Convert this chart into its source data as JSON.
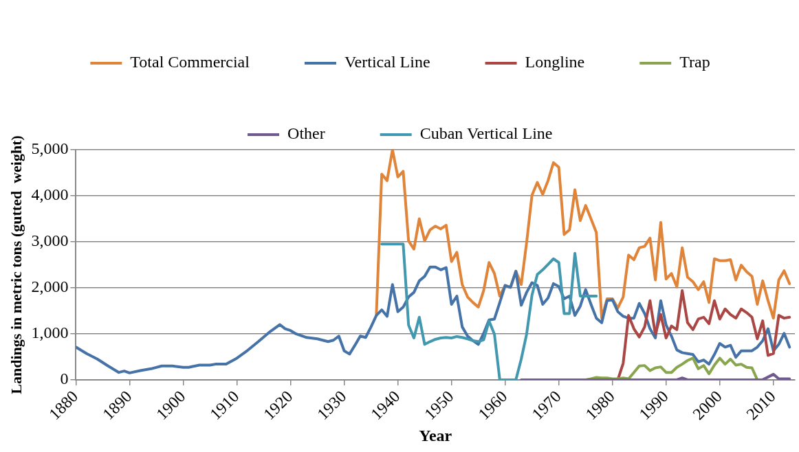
{
  "chart_data": {
    "type": "line",
    "xlabel": "Year",
    "ylabel": "Landings in metric tons (gutted  weight)",
    "xlim": [
      1880,
      2014
    ],
    "xticks": [
      1880,
      1890,
      1900,
      1910,
      1920,
      1930,
      1940,
      1950,
      1960,
      1970,
      1980,
      1990,
      2000,
      2010
    ],
    "ylim": [
      0,
      5000
    ],
    "yticks": [
      0,
      {
        "value": 1000,
        "label": "1,000"
      },
      {
        "value": 2000,
        "label": "2,000"
      },
      {
        "value": 3000,
        "label": "3,000"
      },
      {
        "value": 4000,
        "label": "4,000"
      },
      {
        "value": 5000,
        "label": "5,000"
      }
    ],
    "grid": "y",
    "legend": "top",
    "marker": "none",
    "series": [
      {
        "name": "Total Commercial",
        "color": "#e0843a",
        "x": [
          1936,
          1937,
          1938,
          1939,
          1940,
          1941,
          1942,
          1943,
          1944,
          1945,
          1946,
          1947,
          1948,
          1949,
          1950,
          1951,
          1952,
          1953,
          1954,
          1955,
          1956,
          1957,
          1958,
          1959,
          1960,
          1961,
          1962,
          1963,
          1964,
          1965,
          1966,
          1967,
          1968,
          1969,
          1970,
          1971,
          1972,
          1973,
          1974,
          1975,
          1976,
          1977,
          1978,
          1979,
          1980,
          1981,
          1982,
          1983,
          1984,
          1985,
          1986,
          1987,
          1988,
          1989,
          1990,
          1991,
          1992,
          1993,
          1994,
          1995,
          1996,
          1997,
          1998,
          1999,
          2000,
          2001,
          2002,
          2003,
          2004,
          2005,
          2006,
          2007,
          2008,
          2009,
          2010,
          2011,
          2012,
          2013
        ],
        "values": [
          1420,
          4470,
          4330,
          5000,
          4410,
          4530,
          3020,
          2840,
          3500,
          3020,
          3260,
          3340,
          3280,
          3360,
          2570,
          2770,
          2070,
          1800,
          1680,
          1580,
          1940,
          2550,
          2310,
          1820,
          2050,
          2010,
          2360,
          2070,
          2980,
          4010,
          4290,
          4030,
          4330,
          4720,
          4620,
          3160,
          3260,
          4130,
          3460,
          3790,
          3500,
          3200,
          1340,
          1760,
          1760,
          1560,
          1800,
          2710,
          2610,
          2870,
          2900,
          3080,
          2170,
          3420,
          2190,
          2310,
          2020,
          2870,
          2230,
          2130,
          1960,
          2130,
          1680,
          2630,
          2590,
          2590,
          2610,
          2170,
          2490,
          2350,
          2250,
          1640,
          2150,
          1720,
          1340,
          2170,
          2370,
          2090
        ]
      },
      {
        "name": "Vertical Line",
        "color": "#4572a7",
        "x": [
          1880,
          1882,
          1884,
          1886,
          1888,
          1889,
          1890,
          1892,
          1894,
          1896,
          1898,
          1900,
          1901,
          1903,
          1905,
          1906,
          1908,
          1910,
          1912,
          1914,
          1916,
          1918,
          1919,
          1920,
          1921,
          1923,
          1925,
          1927,
          1928,
          1929,
          1930,
          1931,
          1932,
          1933,
          1934,
          1935,
          1936,
          1937,
          1938,
          1939,
          1940,
          1941,
          1942,
          1943,
          1944,
          1945,
          1946,
          1947,
          1948,
          1949,
          1950,
          1951,
          1952,
          1953,
          1954,
          1955,
          1956,
          1957,
          1958,
          1959,
          1960,
          1961,
          1962,
          1963,
          1964,
          1965,
          1966,
          1967,
          1968,
          1969,
          1970,
          1971,
          1972,
          1973,
          1974,
          1975,
          1976,
          1977,
          1978,
          1979,
          1980,
          1981,
          1982,
          1983,
          1984,
          1985,
          1986,
          1987,
          1988,
          1989,
          1990,
          1991,
          1992,
          1993,
          1994,
          1995,
          1996,
          1997,
          1998,
          1999,
          2000,
          2001,
          2002,
          2003,
          2004,
          2005,
          2006,
          2007,
          2008,
          2009,
          2010,
          2011,
          2012,
          2013
        ],
        "values": [
          710,
          570,
          450,
          300,
          160,
          190,
          150,
          200,
          240,
          300,
          300,
          270,
          270,
          320,
          320,
          340,
          340,
          470,
          640,
          830,
          1030,
          1200,
          1110,
          1070,
          1000,
          920,
          890,
          830,
          860,
          950,
          630,
          560,
          750,
          950,
          920,
          1150,
          1400,
          1520,
          1380,
          2070,
          1480,
          1580,
          1800,
          1900,
          2150,
          2250,
          2450,
          2450,
          2390,
          2440,
          1640,
          1820,
          1150,
          950,
          850,
          770,
          1010,
          1300,
          1320,
          1680,
          2050,
          2010,
          2360,
          1620,
          1900,
          2110,
          2050,
          1640,
          1780,
          2090,
          2030,
          1760,
          1820,
          1400,
          1600,
          1960,
          1640,
          1340,
          1240,
          1720,
          1740,
          1480,
          1380,
          1340,
          1340,
          1660,
          1440,
          1110,
          910,
          1720,
          1190,
          950,
          650,
          590,
          570,
          550,
          390,
          430,
          340,
          550,
          790,
          710,
          750,
          490,
          630,
          630,
          630,
          710,
          850,
          1110,
          630,
          770,
          1010,
          710
        ]
      },
      {
        "name": "Longline",
        "color": "#aa4643",
        "x": [
          1980,
          1981,
          1982,
          1983,
          1984,
          1985,
          1986,
          1987,
          1988,
          1989,
          1990,
          1991,
          1992,
          1993,
          1994,
          1995,
          1996,
          1997,
          1998,
          1999,
          2000,
          2001,
          2002,
          2003,
          2004,
          2005,
          2006,
          2007,
          2008,
          2009,
          2010,
          2011,
          2012,
          2013
        ],
        "values": [
          0,
          0,
          360,
          1400,
          1110,
          930,
          1150,
          1720,
          990,
          1420,
          910,
          1170,
          1090,
          1940,
          1240,
          1090,
          1320,
          1360,
          1220,
          1720,
          1320,
          1540,
          1420,
          1340,
          1540,
          1460,
          1360,
          890,
          1280,
          530,
          570,
          1400,
          1340,
          1360
        ]
      },
      {
        "name": "Trap",
        "color": "#89a54e",
        "x": [
          1975,
          1976,
          1977,
          1978,
          1979,
          1980,
          1981,
          1982,
          1983,
          1984,
          1985,
          1986,
          1987,
          1988,
          1989,
          1990,
          1991,
          1992,
          1993,
          1994,
          1995,
          1996,
          1997,
          1998,
          1999,
          2000,
          2001,
          2002,
          2003,
          2004,
          2005,
          2006,
          2007
        ],
        "values": [
          0,
          20,
          50,
          40,
          40,
          20,
          20,
          40,
          20,
          160,
          300,
          310,
          200,
          260,
          280,
          160,
          160,
          270,
          340,
          420,
          470,
          240,
          310,
          130,
          320,
          470,
          340,
          450,
          320,
          340,
          270,
          260,
          0
        ]
      },
      {
        "name": "Other",
        "color": "#71588f",
        "x": [
          1963,
          1964,
          1965,
          1966,
          1967,
          1968,
          1969,
          1970,
          1971,
          1972,
          1973,
          1974,
          1975,
          1976,
          1977,
          1978,
          1979,
          1980,
          1981,
          1982,
          1983,
          1984,
          1985,
          1986,
          1987,
          1988,
          1989,
          1990,
          1991,
          1992,
          1993,
          1994,
          1995,
          1996,
          1997,
          1998,
          1999,
          2000,
          2001,
          2002,
          2003,
          2004,
          2005,
          2006,
          2007,
          2008,
          2009,
          2010,
          2011,
          2012,
          2013
        ],
        "values": [
          0,
          0,
          0,
          0,
          0,
          0,
          0,
          0,
          0,
          0,
          0,
          0,
          0,
          0,
          0,
          0,
          0,
          0,
          0,
          0,
          0,
          0,
          0,
          0,
          0,
          0,
          0,
          0,
          0,
          0,
          40,
          0,
          0,
          0,
          0,
          0,
          0,
          0,
          0,
          0,
          0,
          0,
          0,
          0,
          0,
          0,
          60,
          120,
          20,
          20,
          20
        ]
      },
      {
        "name": "Cuban Vertical Line",
        "color": "#4198af",
        "x": [
          1937,
          1938,
          1939,
          1940,
          1941,
          1942,
          1943,
          1944,
          1945,
          1946,
          1947,
          1948,
          1949,
          1950,
          1951,
          1952,
          1953,
          1954,
          1955,
          1956,
          1957,
          1958,
          1959,
          1960,
          1961,
          1962,
          1963,
          1964,
          1965,
          1966,
          1967,
          1968,
          1969,
          1970,
          1971,
          1972,
          1973,
          1974,
          1975,
          1976,
          1977
        ],
        "values": [
          2950,
          2950,
          2950,
          2950,
          2950,
          1190,
          910,
          1360,
          770,
          830,
          880,
          910,
          920,
          910,
          940,
          920,
          890,
          850,
          830,
          870,
          1280,
          990,
          0,
          0,
          0,
          0,
          450,
          990,
          1840,
          2290,
          2390,
          2510,
          2630,
          2550,
          1440,
          1440,
          2750,
          1820,
          1820,
          1820,
          1820
        ]
      }
    ]
  }
}
